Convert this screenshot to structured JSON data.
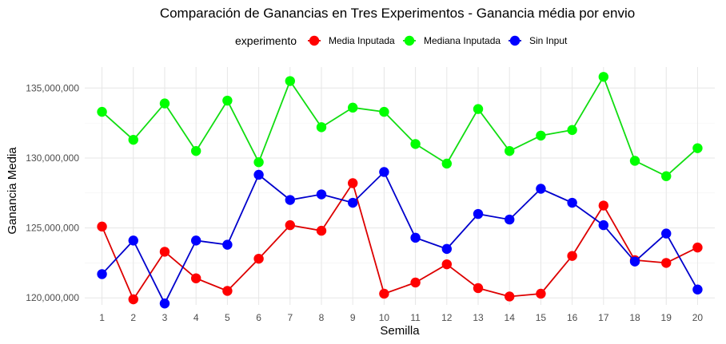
{
  "chart_data": {
    "type": "line",
    "title": "Comparación de Ganancias en Tres Experimentos - Ganancia média por envio",
    "xlabel": "Semilla",
    "ylabel": "Ganancia Media",
    "legend_title": "experimento",
    "legend_position": "top",
    "grid": true,
    "x": [
      1,
      2,
      3,
      4,
      5,
      6,
      7,
      8,
      9,
      10,
      11,
      12,
      13,
      14,
      15,
      16,
      17,
      18,
      19,
      20
    ],
    "x_tick_labels": [
      "1",
      "2",
      "3",
      "4",
      "5",
      "6",
      "7",
      "8",
      "9",
      "10",
      "11",
      "12",
      "13",
      "14",
      "15",
      "16",
      "17",
      "18",
      "19",
      "20"
    ],
    "ylim": [
      119500000,
      136500000
    ],
    "y_ticks": [
      120000000,
      125000000,
      130000000,
      135000000
    ],
    "y_tick_labels": [
      "120,000,000",
      "125,000,000",
      "130,000,000",
      "135,000,000"
    ],
    "series": [
      {
        "name": "Media Inputada",
        "color": "#ff0000",
        "line_color": "#dd0000",
        "values": [
          125100000,
          119900000,
          123300000,
          121400000,
          120500000,
          122800000,
          125200000,
          124800000,
          128200000,
          120300000,
          121100000,
          122400000,
          120700000,
          120100000,
          120300000,
          123000000,
          126600000,
          122700000,
          122500000,
          123600000
        ]
      },
      {
        "name": "Mediana Inputada",
        "color": "#00ff00",
        "line_color": "#11dd11",
        "values": [
          133300000,
          131300000,
          133900000,
          130500000,
          134100000,
          129700000,
          135500000,
          132200000,
          133600000,
          133300000,
          131000000,
          129600000,
          133500000,
          130500000,
          131600000,
          132000000,
          135800000,
          129800000,
          128700000,
          130700000
        ]
      },
      {
        "name": "Sin Input",
        "color": "#0000ff",
        "line_color": "#0000cc",
        "values": [
          121700000,
          124100000,
          119600000,
          124100000,
          123800000,
          128800000,
          127000000,
          127400000,
          126800000,
          129000000,
          124300000,
          123500000,
          126000000,
          125600000,
          127800000,
          126800000,
          125200000,
          122600000,
          124600000,
          120600000
        ]
      }
    ]
  }
}
